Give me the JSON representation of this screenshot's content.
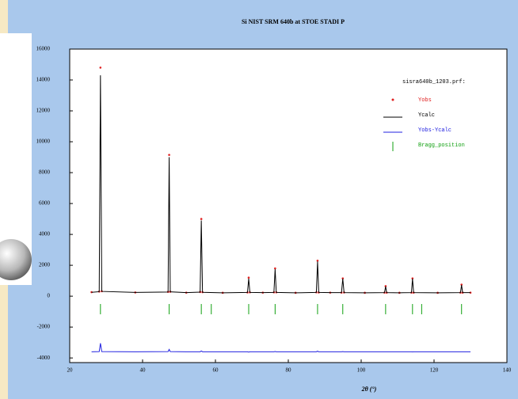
{
  "chart_data": {
    "type": "line",
    "title": "Si NIST SRM 640b at STOE STADI P",
    "xlabel": "2θ (°)",
    "legend_title": "sisra640b_1203.prf:",
    "xlim": [
      20,
      140
    ],
    "xticks": [
      20,
      40,
      60,
      80,
      100,
      120,
      140
    ],
    "ylim": [
      -4300,
      16000
    ],
    "yticks": [
      16000,
      14000,
      12000,
      10000,
      8000,
      6000,
      4000,
      2000,
      0,
      -2000,
      -4000
    ],
    "x": [
      26,
      28.1,
      28.44,
      28.8,
      38,
      47.0,
      47.3,
      47.6,
      52,
      55.8,
      56.12,
      56.45,
      62,
      68.8,
      69.13,
      69.45,
      73,
      76.05,
      76.38,
      76.7,
      82,
      87.7,
      88.03,
      88.35,
      91.5,
      94.6,
      94.95,
      95.3,
      101,
      106.4,
      106.71,
      107.0,
      110.5,
      113.8,
      114.09,
      114.4,
      121,
      127.25,
      127.55,
      127.85,
      130
    ],
    "series": [
      {
        "name": "Yobs",
        "color": "#e02020",
        "kind": "points",
        "values": [
          260,
          300,
          14800,
          320,
          240,
          280,
          9150,
          290,
          230,
          270,
          5000,
          260,
          220,
          240,
          1200,
          250,
          230,
          250,
          1800,
          250,
          220,
          250,
          2300,
          240,
          230,
          230,
          1150,
          240,
          220,
          230,
          650,
          230,
          220,
          230,
          1150,
          230,
          220,
          230,
          750,
          230,
          230
        ]
      },
      {
        "name": "Ycalc",
        "color": "#000000",
        "kind": "line",
        "values": [
          250,
          290,
          14300,
          310,
          240,
          270,
          9000,
          280,
          230,
          260,
          4900,
          250,
          220,
          240,
          1130,
          240,
          230,
          240,
          1750,
          240,
          220,
          240,
          2250,
          240,
          230,
          230,
          1130,
          230,
          220,
          230,
          620,
          230,
          220,
          230,
          1130,
          230,
          220,
          230,
          720,
          230,
          230
        ]
      },
      {
        "name": "Yobs-Ycalc",
        "color": "#2020e0",
        "kind": "line",
        "values": [
          -3600,
          -3590,
          -3050,
          -3590,
          -3600,
          -3590,
          -3450,
          -3590,
          -3600,
          -3600,
          -3550,
          -3600,
          -3600,
          -3600,
          -3620,
          -3600,
          -3600,
          -3600,
          -3580,
          -3600,
          -3600,
          -3600,
          -3560,
          -3600,
          -3600,
          -3600,
          -3590,
          -3600,
          -3600,
          -3600,
          -3600,
          -3600,
          -3600,
          -3600,
          -3610,
          -3600,
          -3600,
          -3600,
          -3600,
          -3600,
          -3600
        ]
      },
      {
        "name": "Bragg_position",
        "color": "#10a010",
        "kind": "ticks",
        "x": [
          28.44,
          47.3,
          56.12,
          58.86,
          69.13,
          76.38,
          88.03,
          94.95,
          106.71,
          114.09,
          116.6,
          127.55
        ]
      }
    ]
  }
}
